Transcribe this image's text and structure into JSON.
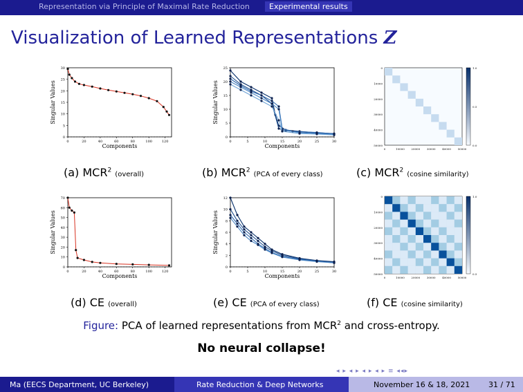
{
  "header": {
    "section_1": "Representation via Principle of Maximal Rate Reduction",
    "section_2": "Experimental results"
  },
  "slide": {
    "title_text": "Visualization of Learned Representations",
    "title_symbol": "Z"
  },
  "panels": [
    {
      "id": "a",
      "label": "(a) MCR",
      "sup": "2",
      "note": "(overall)"
    },
    {
      "id": "b",
      "label": "(b) MCR",
      "sup": "2",
      "note": "(PCA of every class)"
    },
    {
      "id": "c",
      "label": "(c) MCR",
      "sup": "2",
      "note": "(cosine similarity)"
    },
    {
      "id": "d",
      "label": "(d) CE",
      "sup": "",
      "note": "(overall)"
    },
    {
      "id": "e",
      "label": "(e) CE",
      "sup": "",
      "note": "(PCA of every class)"
    },
    {
      "id": "f",
      "label": "(f) CE",
      "sup": "",
      "note": "(cosine similarity)"
    }
  ],
  "figure": {
    "label": "Figure:",
    "text_1": "PCA of learned representations from MCR",
    "sup": "2",
    "text_2": " and cross-entropy."
  },
  "emphasis": "No neural collapse!",
  "footer": {
    "author": "Ma  (EECS Department, UC Berkeley)",
    "talk": "Rate Reduction & Deep Networks",
    "date": "November 16 & 18, 2021",
    "page": "31 / 71"
  },
  "nav_symbols": "◂ ▸ ◂ ▸ ◂ ▸ ◂ ▸ ≡ ◂◂▸",
  "chart_data": [
    {
      "id": "a",
      "type": "line",
      "xlabel": "Components",
      "ylabel": "Singular Values",
      "xlim": [
        0,
        128
      ],
      "ylim": [
        0,
        30
      ],
      "xticks": [
        "0",
        "20",
        "40",
        "60",
        "80",
        "100",
        "120"
      ],
      "yticks": [
        "0",
        "5",
        "10",
        "15",
        "20",
        "25",
        "30"
      ],
      "series": [
        {
          "points": [
            [
              0,
              29.5
            ],
            [
              2,
              27
            ],
            [
              5,
              25.5
            ],
            [
              9,
              24
            ],
            [
              14,
              23
            ],
            [
              20,
              22.5
            ],
            [
              30,
              21.8
            ],
            [
              40,
              21
            ],
            [
              50,
              20.3
            ],
            [
              60,
              19.7
            ],
            [
              70,
              19.1
            ],
            [
              80,
              18.5
            ],
            [
              90,
              17.8
            ],
            [
              100,
              16.8
            ],
            [
              110,
              15.5
            ],
            [
              118,
              13
            ],
            [
              122,
              11
            ],
            [
              125,
              9.5
            ]
          ]
        }
      ]
    },
    {
      "id": "b",
      "type": "line",
      "xlabel": "Components",
      "ylabel": "Singular Values",
      "xlim": [
        0,
        30
      ],
      "ylim": [
        0,
        25
      ],
      "xticks": [
        "0",
        "5",
        "10",
        "15",
        "20",
        "25",
        "30"
      ],
      "yticks": [
        "0",
        "5",
        "10",
        "15",
        "20",
        "25"
      ],
      "series": [
        {
          "points": [
            [
              0,
              24
            ],
            [
              3,
              20
            ],
            [
              6,
              18
            ],
            [
              9,
              16
            ],
            [
              12,
              14
            ],
            [
              13,
              8
            ],
            [
              14,
              4
            ],
            [
              16,
              2.5
            ],
            [
              20,
              2
            ],
            [
              25,
              1.5
            ],
            [
              30,
              1.2
            ]
          ]
        },
        {
          "points": [
            [
              0,
              22
            ],
            [
              3,
              19
            ],
            [
              6,
              17
            ],
            [
              9,
              15
            ],
            [
              12,
              12
            ],
            [
              14,
              3
            ],
            [
              16,
              2.2
            ],
            [
              20,
              1.8
            ],
            [
              25,
              1.4
            ],
            [
              30,
              1
            ]
          ]
        },
        {
          "points": [
            [
              0,
              21
            ],
            [
              3,
              18.5
            ],
            [
              6,
              16.5
            ],
            [
              9,
              15
            ],
            [
              12,
              13
            ],
            [
              14,
              11
            ],
            [
              15,
              3
            ],
            [
              18,
              2
            ],
            [
              25,
              1.6
            ],
            [
              30,
              1.1
            ]
          ]
        },
        {
          "points": [
            [
              0,
              20
            ],
            [
              3,
              18
            ],
            [
              6,
              16
            ],
            [
              9,
              14
            ],
            [
              12,
              12
            ],
            [
              14,
              10
            ],
            [
              15,
              2.5
            ],
            [
              20,
              1.5
            ],
            [
              25,
              1.2
            ],
            [
              30,
              0.9
            ]
          ]
        },
        {
          "points": [
            [
              0,
              19
            ],
            [
              3,
              17
            ],
            [
              6,
              15
            ],
            [
              9,
              13
            ],
            [
              12,
              11
            ],
            [
              14,
              6
            ],
            [
              15,
              2
            ],
            [
              20,
              1.2
            ],
            [
              25,
              1
            ],
            [
              30,
              0.7
            ]
          ]
        }
      ]
    },
    {
      "id": "c",
      "type": "heatmap",
      "title": "",
      "xticks": [
        "0",
        "10000",
        "20000",
        "30000",
        "40000",
        "50000"
      ],
      "yticks": [
        "0",
        "10000",
        "20000",
        "30000",
        "40000",
        "50000"
      ],
      "colorbar": [
        "0.0",
        "0.5",
        "1.0"
      ],
      "blocks": 10,
      "diag_value": 0.15,
      "off_value": 0.0
    },
    {
      "id": "d",
      "type": "line",
      "xlabel": "Components",
      "ylabel": "Singular Values",
      "xlim": [
        0,
        128
      ],
      "ylim": [
        0,
        70
      ],
      "xticks": [
        "0",
        "20",
        "40",
        "60",
        "80",
        "100",
        "120"
      ],
      "yticks": [
        "0",
        "10",
        "20",
        "30",
        "40",
        "50",
        "60",
        "70"
      ],
      "series": [
        {
          "points": [
            [
              0,
              70
            ],
            [
              2,
              60
            ],
            [
              5,
              57
            ],
            [
              8,
              55
            ],
            [
              10,
              17
            ],
            [
              12,
              9
            ],
            [
              20,
              7
            ],
            [
              30,
              5
            ],
            [
              40,
              4
            ],
            [
              60,
              3
            ],
            [
              80,
              2.5
            ],
            [
              100,
              2
            ],
            [
              125,
              1.5
            ]
          ]
        }
      ]
    },
    {
      "id": "e",
      "type": "line",
      "xlabel": "Components",
      "ylabel": "Singular Values",
      "xlim": [
        0,
        30
      ],
      "ylim": [
        0,
        12
      ],
      "xticks": [
        "0",
        "5",
        "10",
        "15",
        "20",
        "25",
        "30"
      ],
      "yticks": [
        "0",
        "2",
        "4",
        "6",
        "8",
        "10",
        "12"
      ],
      "series": [
        {
          "points": [
            [
              0,
              12
            ],
            [
              2,
              9
            ],
            [
              4,
              7
            ],
            [
              6,
              6
            ],
            [
              8,
              5
            ],
            [
              10,
              4
            ],
            [
              12,
              3
            ],
            [
              15,
              2.2
            ],
            [
              20,
              1.5
            ],
            [
              25,
              1.1
            ],
            [
              30,
              0.9
            ]
          ]
        },
        {
          "points": [
            [
              0,
              10
            ],
            [
              2,
              8
            ],
            [
              4,
              6.5
            ],
            [
              6,
              5.5
            ],
            [
              8,
              4.5
            ],
            [
              10,
              3.5
            ],
            [
              12,
              2.8
            ],
            [
              15,
              2
            ],
            [
              20,
              1.4
            ],
            [
              25,
              1
            ],
            [
              30,
              0.8
            ]
          ]
        },
        {
          "points": [
            [
              0,
              9
            ],
            [
              2,
              7.5
            ],
            [
              4,
              6
            ],
            [
              6,
              5
            ],
            [
              8,
              4
            ],
            [
              10,
              3.2
            ],
            [
              12,
              2.5
            ],
            [
              15,
              1.8
            ],
            [
              20,
              1.3
            ],
            [
              25,
              1
            ],
            [
              30,
              0.7
            ]
          ]
        },
        {
          "points": [
            [
              0,
              8.5
            ],
            [
              2,
              7
            ],
            [
              4,
              5.5
            ],
            [
              6,
              4.5
            ],
            [
              8,
              3.8
            ],
            [
              10,
              3
            ],
            [
              12,
              2.4
            ],
            [
              15,
              1.7
            ],
            [
              20,
              1.2
            ],
            [
              25,
              0.9
            ],
            [
              30,
              0.7
            ]
          ]
        }
      ]
    },
    {
      "id": "f",
      "type": "heatmap",
      "title": "",
      "xticks": [
        "0",
        "10000",
        "20000",
        "30000",
        "40000",
        "50000"
      ],
      "yticks": [
        "0",
        "10000",
        "20000",
        "30000",
        "40000",
        "50000"
      ],
      "colorbar": [
        "0.5",
        "1.0"
      ],
      "blocks": 10,
      "diag_value": 0.85,
      "off_value": 0.2
    }
  ]
}
